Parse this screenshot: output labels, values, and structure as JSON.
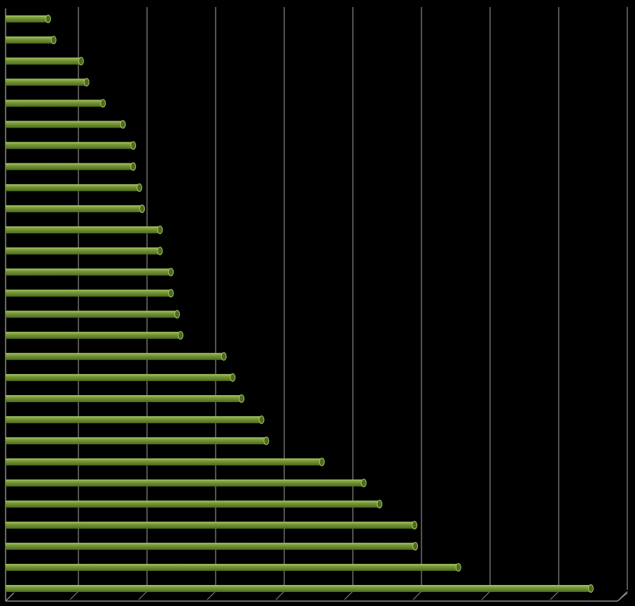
{
  "chart_data": {
    "type": "bar",
    "orientation": "horizontal",
    "style": "3d-cylinder",
    "title": "",
    "xlabel": "",
    "ylabel": "",
    "xlim": [
      0,
      9
    ],
    "major_unit": 1,
    "grid": true,
    "legend": "none",
    "colors": {
      "background": "#000000",
      "bar": "#7a9a3a",
      "bar_highlight": "#a8c864",
      "bar_shadow": "#4e6a1e",
      "gridline": "#8c8c8c"
    },
    "values": [
      0.62,
      0.7,
      1.1,
      1.18,
      1.42,
      1.71,
      1.86,
      1.86,
      1.95,
      1.99,
      2.25,
      2.25,
      2.41,
      2.41,
      2.5,
      2.55,
      3.18,
      3.31,
      3.44,
      3.73,
      3.8,
      4.61,
      5.22,
      5.45,
      5.96,
      5.97,
      6.6,
      8.53
    ]
  }
}
